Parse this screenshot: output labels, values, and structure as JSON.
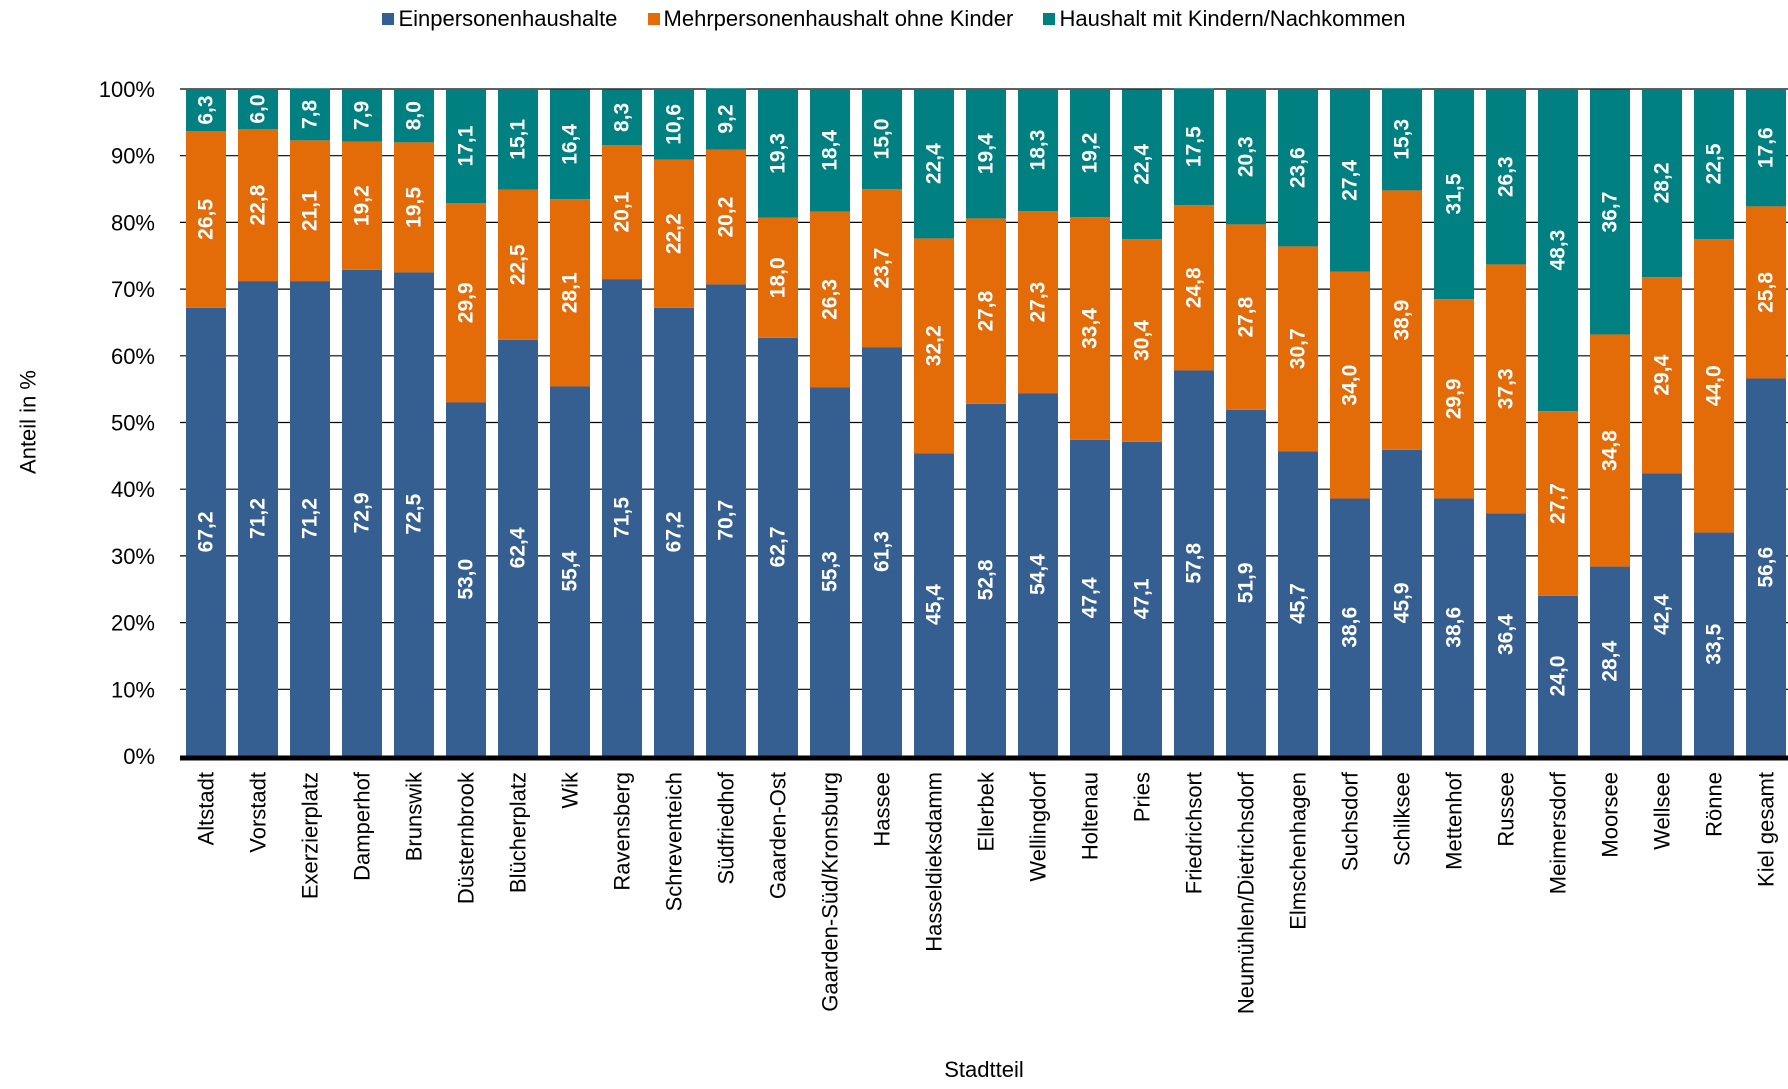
{
  "chart_data": {
    "type": "bar",
    "stacked": true,
    "percent": true,
    "xlabel": "Stadtteil",
    "ylabel": "Anteil in %",
    "ylim": [
      0,
      100
    ],
    "ytick_labels": [
      "0%",
      "10%",
      "20%",
      "30%",
      "40%",
      "50%",
      "60%",
      "70%",
      "80%",
      "90%",
      "100%"
    ],
    "grid": true,
    "legend_position": "top",
    "categories": [
      "Altstadt",
      "Vorstadt",
      "Exerzierplatz",
      "Damperhof",
      "Brunswik",
      "Düsternbrook",
      "Blücherplatz",
      "Wik",
      "Ravensberg",
      "Schreventeich",
      "Südfriedhof",
      "Gaarden-Ost",
      "Gaarden-Süd/Kronsburg",
      "Hassee",
      "Hasseldieksdamm",
      "Ellerbek",
      "Wellingdorf",
      "Holtenau",
      "Pries",
      "Friedrichsort",
      "Neumühlen/Dietrichsdorf",
      "Elmschenhagen",
      "Suchsdorf",
      "Schilksee",
      "Mettenhof",
      "Russee",
      "Meimersdorf",
      "Moorsee",
      "Wellsee",
      "Rönne",
      "Kiel gesamt"
    ],
    "series": [
      {
        "name": "Einpersonenhaushalte",
        "color": "#365F91",
        "values": [
          67.2,
          71.2,
          71.2,
          72.9,
          72.5,
          53.0,
          62.4,
          55.4,
          71.5,
          67.2,
          70.7,
          62.7,
          55.3,
          61.3,
          45.4,
          52.8,
          54.4,
          47.4,
          47.1,
          57.8,
          51.9,
          45.7,
          38.6,
          45.9,
          38.6,
          36.4,
          24.0,
          28.4,
          42.4,
          33.5,
          56.6
        ],
        "labels": [
          "67,2",
          "71,2",
          "71,2",
          "72,9",
          "72,5",
          "53,0",
          "62,4",
          "55,4",
          "71,5",
          "67,2",
          "70,7",
          "62,7",
          "55,3",
          "61,3",
          "45,4",
          "52,8",
          "54,4",
          "47,4",
          "47,1",
          "57,8",
          "51,9",
          "45,7",
          "38,6",
          "45,9",
          "38,6",
          "36,4",
          "24,0",
          "28,4",
          "42,4",
          "33,5",
          "56,6"
        ]
      },
      {
        "name": "Mehrpersonenhaushalt ohne Kinder",
        "color": "#E36C09",
        "values": [
          26.5,
          22.8,
          21.1,
          19.2,
          19.5,
          29.9,
          22.5,
          28.1,
          20.1,
          22.2,
          20.2,
          18.0,
          26.3,
          23.7,
          32.2,
          27.8,
          27.3,
          33.4,
          30.4,
          24.8,
          27.8,
          30.7,
          34.0,
          38.9,
          29.9,
          37.3,
          27.7,
          34.8,
          29.4,
          44.0,
          25.8
        ],
        "labels": [
          "26,5",
          "22,8",
          "21,1",
          "19,2",
          "19,5",
          "29,9",
          "22,5",
          "28,1",
          "20,1",
          "22,2",
          "20,2",
          "18,0",
          "26,3",
          "23,7",
          "32,2",
          "27,8",
          "27,3",
          "33,4",
          "30,4",
          "24,8",
          "27,8",
          "30,7",
          "34,0",
          "38,9",
          "29,9",
          "37,3",
          "27,7",
          "34,8",
          "29,4",
          "44,0",
          "25,8"
        ]
      },
      {
        "name": "Haushalt mit Kindern/Nachkommen",
        "color": "#008080",
        "values": [
          6.3,
          6.0,
          7.8,
          7.9,
          8.0,
          17.1,
          15.1,
          16.4,
          8.3,
          10.6,
          9.2,
          19.3,
          18.4,
          15.0,
          22.4,
          19.4,
          18.3,
          19.2,
          22.4,
          17.5,
          20.3,
          23.6,
          27.4,
          15.3,
          31.5,
          26.3,
          48.3,
          36.7,
          28.2,
          22.5,
          17.6
        ],
        "labels": [
          "6,3",
          "6,0",
          "7,8",
          "7,9",
          "8,0",
          "17,1",
          "15,1",
          "16,4",
          "8,3",
          "10,6",
          "9,2",
          "19,3",
          "18,4",
          "15,0",
          "22,4",
          "19,4",
          "18,3",
          "19,2",
          "22,4",
          "17,5",
          "20,3",
          "23,6",
          "27,4",
          "15,3",
          "31,5",
          "26,3",
          "48,3",
          "36,7",
          "28,2",
          "22,5",
          "17,6"
        ]
      }
    ]
  }
}
